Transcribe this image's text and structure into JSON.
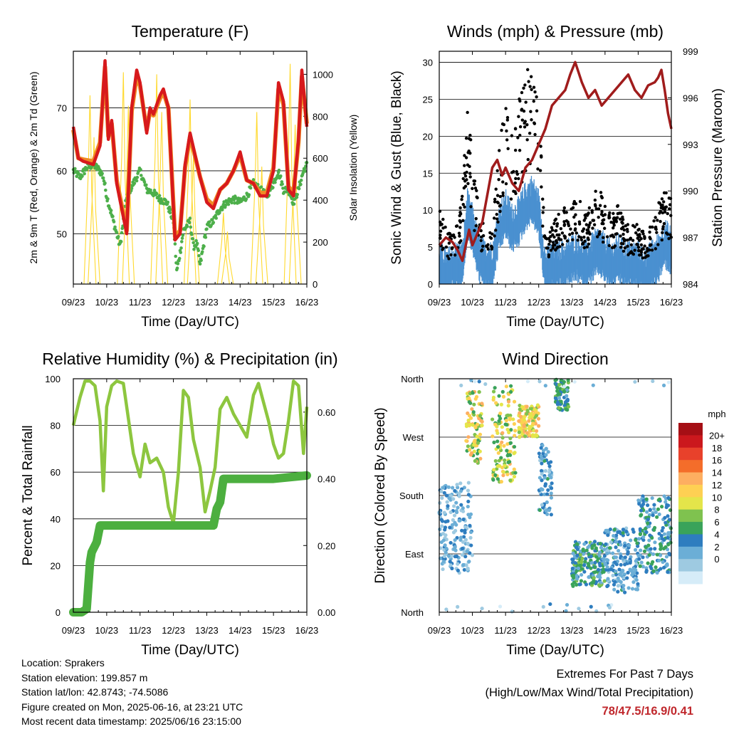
{
  "colors": {
    "temp_red": "#d7191c",
    "temp_orange": "#f08a24",
    "dewpoint_green": "#4daf4a",
    "solar_yellow": "#ffd92f",
    "wind_blue": "#4a90d0",
    "gust_black": "#000000",
    "pressure_maroon": "#a01c1c",
    "rh_lightgreen": "#8dc63f",
    "precip_green": "#4caf3f",
    "extremes_red": "#c0282d"
  },
  "time_ticks": [
    "09/23",
    "10/23",
    "11/23",
    "12/23",
    "13/23",
    "14/23",
    "15/23",
    "16/23"
  ],
  "chart_data": [
    {
      "id": "temperature",
      "type": "line",
      "title": "Temperature (F)",
      "xlabel": "Time (Day/UTC)",
      "ylabel": "2m & 9m T (Red, Orange) & 2m Td (Green)",
      "y2label": "Solar Insolation (Yellow)",
      "ylim": [
        42,
        79
      ],
      "y2lim": [
        0,
        1110
      ],
      "yticks": [
        50,
        60,
        70
      ],
      "y2ticks": [
        0,
        200,
        400,
        600,
        800,
        1000
      ],
      "x_days": [
        0,
        7
      ],
      "series": [
        {
          "name": "2m T",
          "color": "#d7191c",
          "x": [
            0,
            0.15,
            0.3,
            0.6,
            0.8,
            0.95,
            1.05,
            1.15,
            1.3,
            1.6,
            1.75,
            1.9,
            2.0,
            2.2,
            2.3,
            2.4,
            2.6,
            2.7,
            2.85,
            3.05,
            3.2,
            3.35,
            3.5,
            3.8,
            4.0,
            4.2,
            4.4,
            4.6,
            4.8,
            5.0,
            5.2,
            5.4,
            5.6,
            5.8,
            6.0,
            6.15,
            6.3,
            6.45,
            6.6,
            6.75,
            6.85,
            7.0
          ],
          "y": [
            67,
            62,
            61.5,
            61,
            64,
            77.5,
            65,
            68,
            58,
            50,
            70,
            76,
            74,
            66,
            70,
            69,
            72,
            73,
            70,
            49,
            50,
            61,
            66,
            59,
            55,
            54,
            57,
            58,
            60,
            63,
            58.5,
            58,
            56,
            56,
            60,
            74,
            71,
            57,
            56,
            65,
            76,
            67
          ]
        },
        {
          "name": "9m T",
          "color": "#f08a24",
          "x": [
            0,
            0.15,
            0.3,
            0.6,
            0.8,
            0.95,
            1.05,
            1.15,
            1.3,
            1.6,
            1.75,
            1.9,
            2.0,
            2.2,
            2.3,
            2.4,
            2.6,
            2.7,
            2.85,
            3.05,
            3.2,
            3.35,
            3.5,
            3.8,
            4.0,
            4.2,
            4.4,
            4.6,
            4.8,
            5.0,
            5.2,
            5.4,
            5.6,
            5.8,
            6.0,
            6.15,
            6.3,
            6.45,
            6.6,
            6.75,
            6.85,
            7.0
          ],
          "y": [
            66.5,
            62,
            61.8,
            61.5,
            64.5,
            76.5,
            65.5,
            67.5,
            58.5,
            50.5,
            69.5,
            75,
            73.5,
            66.5,
            69.5,
            68.8,
            71.5,
            72.5,
            70,
            49.5,
            50.5,
            60.5,
            65.5,
            59,
            55.5,
            54.5,
            57,
            58,
            60,
            62.5,
            58.5,
            58,
            56.5,
            56.5,
            60.5,
            73,
            70.5,
            57.5,
            56.5,
            64.5,
            75,
            67.5
          ]
        },
        {
          "name": "2m Td",
          "color": "#4daf4a",
          "x": [
            0,
            0.2,
            0.4,
            0.6,
            0.8,
            0.9,
            1.0,
            1.2,
            1.4,
            1.6,
            1.8,
            2.0,
            2.2,
            2.4,
            2.6,
            2.8,
            3.0,
            3.1,
            3.2,
            3.3,
            3.5,
            3.6,
            3.7,
            3.8,
            4.0,
            4.2,
            4.4,
            4.6,
            4.8,
            5.0,
            5.2,
            5.4,
            5.6,
            5.8,
            6.0,
            6.15,
            6.3,
            6.45,
            6.6,
            6.75,
            6.9,
            7.0
          ],
          "y": [
            60,
            59,
            60.5,
            61,
            60,
            59,
            56,
            52,
            48,
            56,
            58,
            60,
            57,
            56.5,
            55.5,
            55,
            52,
            44,
            47,
            50.5,
            52,
            48,
            48.5,
            45,
            51,
            52,
            54,
            55,
            55.5,
            55,
            56,
            58,
            57,
            56,
            58,
            60,
            57,
            57,
            55,
            57,
            60,
            61
          ]
        },
        {
          "name": "Solar Insolation",
          "color": "#ffd92f",
          "axis": "y2",
          "daytime_peaks": [
            [
              0.5,
              900
            ],
            [
              0.62,
              700
            ],
            [
              1.5,
              1010
            ],
            [
              1.65,
              850
            ],
            [
              2.5,
              1000
            ],
            [
              2.65,
              820
            ],
            [
              3.5,
              880
            ],
            [
              3.6,
              620
            ],
            [
              4.5,
              340
            ],
            [
              4.62,
              250
            ],
            [
              5.5,
              820
            ],
            [
              5.65,
              560
            ],
            [
              6.5,
              1050
            ],
            [
              6.65,
              760
            ]
          ]
        }
      ]
    },
    {
      "id": "winds",
      "type": "scatter",
      "title": "Winds (mph) & Pressure (mb)",
      "xlabel": "Time (Day/UTC)",
      "ylabel": "Sonic Wind & Gust (Blue, Black)",
      "y2label": "Station Pressure (Maroon)",
      "ylim": [
        0,
        31.5
      ],
      "y2lim": [
        984,
        999
      ],
      "yticks": [
        0,
        5,
        10,
        15,
        20,
        25,
        30
      ],
      "y2ticks": [
        984,
        987,
        990,
        993,
        996,
        999
      ],
      "x_days": [
        0,
        7
      ],
      "series": [
        {
          "name": "Sonic Wind",
          "color": "#4a90d0",
          "x": [
            0,
            0.25,
            0.5,
            0.7,
            0.85,
            1.0,
            1.2,
            1.4,
            1.6,
            1.8,
            2.0,
            2.2,
            2.4,
            2.6,
            2.8,
            3.0,
            3.2,
            3.4,
            3.6,
            3.8,
            4.0,
            4.2,
            4.4,
            4.6,
            4.8,
            5.0,
            5.2,
            5.4,
            5.6,
            5.8,
            6.0,
            6.2,
            6.4,
            6.6,
            6.8,
            7.0
          ],
          "y": [
            3,
            2,
            3,
            3,
            10,
            8,
            4,
            3,
            3,
            8,
            10,
            8,
            9,
            11,
            12,
            10,
            2,
            3,
            3,
            3,
            4,
            4,
            3,
            4,
            5,
            4,
            3,
            4,
            3,
            3,
            3,
            2,
            3,
            4,
            6,
            5
          ]
        },
        {
          "name": "Sonic Gust",
          "color": "#000000",
          "x": [
            0,
            0.25,
            0.5,
            0.7,
            0.85,
            1.0,
            1.2,
            1.4,
            1.6,
            1.8,
            2.0,
            2.2,
            2.4,
            2.6,
            2.8,
            3.0,
            3.2,
            3.4,
            3.6,
            3.8,
            4.0,
            4.2,
            4.4,
            4.6,
            4.8,
            5.0,
            5.2,
            5.4,
            5.6,
            5.8,
            6.0,
            6.2,
            6.4,
            6.6,
            6.8,
            7.0
          ],
          "y": [
            8,
            5,
            6,
            9,
            20,
            12,
            8,
            5,
            6,
            14,
            18,
            15,
            19,
            22,
            22,
            18,
            5,
            6,
            7,
            8,
            9,
            9,
            7,
            9,
            10,
            8,
            7,
            8,
            6,
            6,
            6,
            5,
            6,
            8,
            10,
            9
          ]
        },
        {
          "name": "Station Pressure",
          "color": "#a01c1c",
          "axis": "y2",
          "x": [
            0,
            0.2,
            0.4,
            0.55,
            0.7,
            0.9,
            1.0,
            1.3,
            1.6,
            1.75,
            1.9,
            2.0,
            2.2,
            2.4,
            2.6,
            2.8,
            3.0,
            3.2,
            3.4,
            3.6,
            3.8,
            3.95,
            4.1,
            4.3,
            4.5,
            4.7,
            4.9,
            5.1,
            5.3,
            5.5,
            5.7,
            5.9,
            6.1,
            6.3,
            6.5,
            6.6,
            6.7,
            6.8,
            6.9,
            7.0
          ],
          "y": [
            986.5,
            987,
            986.7,
            986.2,
            985.5,
            987.5,
            986.5,
            988,
            991.5,
            992,
            991,
            991.5,
            990.5,
            990,
            991.5,
            992,
            993,
            994,
            995.5,
            996,
            996.5,
            997.5,
            998.3,
            997,
            996,
            996.5,
            995.5,
            996,
            996.5,
            997,
            997.5,
            996.5,
            996,
            996.8,
            997,
            997.3,
            997.8,
            996.5,
            995,
            994
          ]
        }
      ]
    },
    {
      "id": "humidity",
      "type": "line",
      "title": "Relative Humidity (%) & Precipitation (in)",
      "xlabel": "Time (Day/UTC)",
      "ylabel": "Percent & Total Rainfall",
      "ylim": [
        0,
        100
      ],
      "y2lim": [
        0,
        0.7
      ],
      "yticks": [
        0,
        20,
        40,
        60,
        80,
        100
      ],
      "y2ticks": [
        "0.00",
        "0.20",
        "0.40",
        "0.60"
      ],
      "x_days": [
        0,
        7
      ],
      "series": [
        {
          "name": "Relative Humidity",
          "color": "#8dc63f",
          "x": [
            0,
            0.2,
            0.35,
            0.5,
            0.65,
            0.8,
            0.9,
            1.0,
            1.15,
            1.3,
            1.5,
            1.65,
            1.8,
            2.0,
            2.15,
            2.3,
            2.5,
            2.7,
            2.85,
            3.0,
            3.15,
            3.3,
            3.45,
            3.6,
            3.8,
            3.95,
            4.1,
            4.25,
            4.4,
            4.6,
            4.8,
            5.0,
            5.2,
            5.4,
            5.55,
            5.7,
            5.85,
            6.0,
            6.15,
            6.3,
            6.45,
            6.6,
            6.75,
            6.9,
            7.0
          ],
          "y": [
            80,
            92,
            99,
            99,
            97,
            82,
            52,
            88,
            97,
            99,
            98,
            83,
            68,
            58,
            72,
            64,
            66,
            60,
            45,
            38,
            60,
            95,
            92,
            74,
            62,
            43,
            52,
            62,
            87,
            92,
            85,
            80,
            75,
            93,
            98,
            90,
            82,
            72,
            66,
            68,
            82,
            99,
            97,
            68,
            88
          ]
        },
        {
          "name": "Total Precipitation",
          "color": "#4caf3f",
          "axis": "y2",
          "x": [
            0,
            0.25,
            0.4,
            0.45,
            0.5,
            0.55,
            0.6,
            0.7,
            0.8,
            1.0,
            2.0,
            3.0,
            4.0,
            4.2,
            4.3,
            4.4,
            4.5,
            5.0,
            6.0,
            7.0
          ],
          "y": [
            0,
            0,
            0.01,
            0.08,
            0.15,
            0.18,
            0.19,
            0.21,
            0.26,
            0.26,
            0.26,
            0.26,
            0.26,
            0.26,
            0.31,
            0.33,
            0.4,
            0.4,
            0.4,
            0.41
          ]
        }
      ]
    },
    {
      "id": "direction",
      "type": "scatter",
      "title": "Wind Direction",
      "xlabel": "Time (Day/UTC)",
      "ylabel": "Direction (Colored By Speed)",
      "yticks": [
        "North",
        "East",
        "South",
        "West",
        "North"
      ],
      "ydegrees": [
        0,
        90,
        180,
        270,
        360
      ],
      "x_days": [
        0,
        7
      ],
      "colorbar": {
        "title": "mph",
        "labels": [
          "20+",
          "18",
          "16",
          "14",
          "12",
          "10",
          "8",
          "6",
          "4",
          "2",
          "0"
        ],
        "colors": [
          "#a50f15",
          "#cb181d",
          "#e8412b",
          "#f46d2a",
          "#fdae61",
          "#fed053",
          "#e4e54a",
          "#7fc24f",
          "#3aa35a",
          "#2e7dbf",
          "#6baed6",
          "#9ecae1",
          "#d6ecf8"
        ]
      },
      "clusters": [
        {
          "x": [
            0.0,
            1.0
          ],
          "deg": [
            60,
            200
          ],
          "speed": [
            1,
            5
          ]
        },
        {
          "x": [
            0.8,
            1.3
          ],
          "deg": [
            230,
            340
          ],
          "speed": [
            6,
            14
          ]
        },
        {
          "x": [
            1.6,
            2.3
          ],
          "deg": [
            200,
            350
          ],
          "speed": [
            6,
            13
          ]
        },
        {
          "x": [
            2.4,
            3.0
          ],
          "deg": [
            270,
            320
          ],
          "speed": [
            8,
            14
          ]
        },
        {
          "x": [
            3.0,
            3.4
          ],
          "deg": [
            150,
            260
          ],
          "speed": [
            2,
            6
          ]
        },
        {
          "x": [
            3.5,
            3.9
          ],
          "deg": [
            310,
            360
          ],
          "speed": [
            4,
            8
          ]
        },
        {
          "x": [
            4.0,
            5.0
          ],
          "deg": [
            40,
            110
          ],
          "speed": [
            3,
            8
          ]
        },
        {
          "x": [
            5.0,
            6.0
          ],
          "deg": [
            30,
            130
          ],
          "speed": [
            2,
            6
          ]
        },
        {
          "x": [
            6.0,
            7.0
          ],
          "deg": [
            60,
            180
          ],
          "speed": [
            3,
            7
          ]
        }
      ]
    }
  ],
  "info": {
    "location": "Location: Sprakers",
    "elevation": "Station elevation: 199.857 m",
    "latlon": "Station lat/lon: 42.8743; -74.5086",
    "created": "Figure created on Mon, 2025-06-16, at 23:21 UTC",
    "timestamp": "Most recent data timestamp: 2025/06/16 23:15:00"
  },
  "extremes": {
    "title": "Extremes For Past 7 Days",
    "subtitle": "(High/Low/Max Wind/Total Precipitation)",
    "values": "78/47.5/16.9/0.41"
  }
}
